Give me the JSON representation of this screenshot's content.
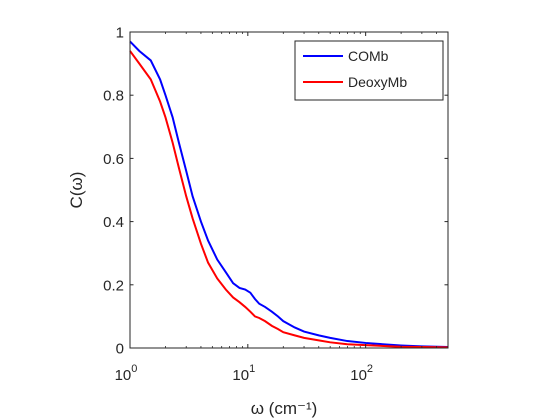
{
  "chart_data": {
    "type": "line",
    "title": "",
    "xlabel": "ω (cm⁻¹)",
    "ylabel": "C(ω)",
    "xscale": "log",
    "xlim": [
      1,
      500
    ],
    "ylim": [
      0,
      1
    ],
    "x_ticks": [
      1,
      10,
      100
    ],
    "x_tick_labels": [
      {
        "base": "10",
        "exp": "0"
      },
      {
        "base": "10",
        "exp": "1"
      },
      {
        "base": "10",
        "exp": "2"
      }
    ],
    "y_ticks": [
      0,
      0.2,
      0.4,
      0.6,
      0.8,
      1
    ],
    "y_tick_labels": [
      "0",
      "0.2",
      "0.4",
      "0.6",
      "0.8",
      "1"
    ],
    "grid": false,
    "legend": "top-right",
    "series": [
      {
        "name": "COMb",
        "color": "#0000ff",
        "x": [
          1,
          1.2,
          1.5,
          1.8,
          2.0,
          2.3,
          2.6,
          3.0,
          3.4,
          4.0,
          4.6,
          5.5,
          6.5,
          7.5,
          8.5,
          9.5,
          10.5,
          11.5,
          12.5,
          14,
          16,
          18,
          20,
          25,
          30,
          40,
          50,
          70,
          100,
          150,
          200,
          300,
          500
        ],
        "y": [
          0.97,
          0.94,
          0.91,
          0.85,
          0.8,
          0.73,
          0.65,
          0.56,
          0.48,
          0.4,
          0.34,
          0.28,
          0.24,
          0.205,
          0.19,
          0.185,
          0.175,
          0.155,
          0.14,
          0.13,
          0.115,
          0.1,
          0.085,
          0.065,
          0.052,
          0.04,
          0.032,
          0.022,
          0.016,
          0.011,
          0.008,
          0.005,
          0.003
        ]
      },
      {
        "name": "DeoxyMb",
        "color": "#ff0000",
        "x": [
          1,
          1.2,
          1.5,
          1.8,
          2.0,
          2.3,
          2.6,
          3.0,
          3.4,
          4.0,
          4.6,
          5.5,
          6.5,
          7.5,
          8.5,
          9.5,
          10.5,
          11.5,
          12.5,
          14,
          16,
          18,
          20,
          25,
          30,
          40,
          50,
          70,
          100,
          150,
          200,
          300,
          500
        ],
        "y": [
          0.94,
          0.9,
          0.85,
          0.78,
          0.73,
          0.65,
          0.57,
          0.48,
          0.41,
          0.33,
          0.27,
          0.22,
          0.185,
          0.16,
          0.145,
          0.13,
          0.115,
          0.1,
          0.095,
          0.085,
          0.07,
          0.06,
          0.05,
          0.04,
          0.032,
          0.024,
          0.018,
          0.012,
          0.009,
          0.006,
          0.004,
          0.003,
          0.002
        ]
      }
    ]
  }
}
